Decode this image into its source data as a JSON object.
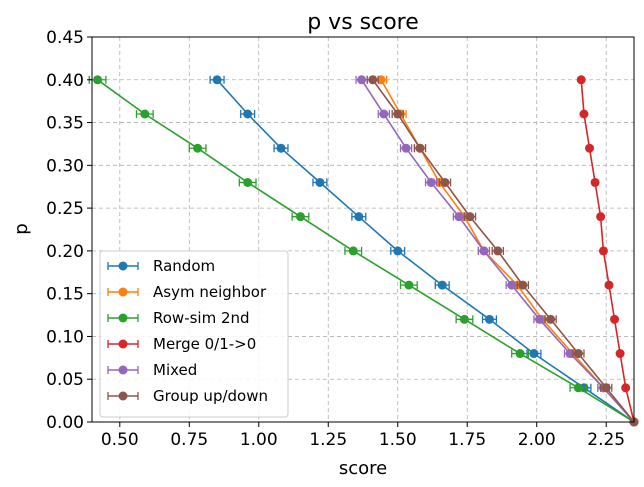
{
  "chart_data": {
    "type": "line",
    "title": "p vs score",
    "xlabel": "score",
    "ylabel": "p",
    "xlim": [
      0.4,
      2.35
    ],
    "ylim": [
      0.0,
      0.45
    ],
    "xticks": [
      "0.50",
      "0.75",
      "1.00",
      "1.25",
      "1.50",
      "1.75",
      "2.00",
      "2.25"
    ],
    "yticks": [
      "0.00",
      "0.05",
      "0.10",
      "0.15",
      "0.20",
      "0.25",
      "0.30",
      "0.35",
      "0.40",
      "0.45"
    ],
    "grid": true,
    "legend_position": "lower-left",
    "error_bars": "horizontal",
    "series": [
      {
        "name": "Random",
        "color": "#1f77b4",
        "points": [
          {
            "x": 0.85,
            "y": 0.4
          },
          {
            "x": 0.96,
            "y": 0.36
          },
          {
            "x": 1.08,
            "y": 0.32
          },
          {
            "x": 1.22,
            "y": 0.28
          },
          {
            "x": 1.36,
            "y": 0.24
          },
          {
            "x": 1.5,
            "y": 0.2
          },
          {
            "x": 1.66,
            "y": 0.16
          },
          {
            "x": 1.83,
            "y": 0.12
          },
          {
            "x": 1.99,
            "y": 0.08
          },
          {
            "x": 2.17,
            "y": 0.04
          },
          {
            "x": 2.35,
            "y": 0.0
          }
        ],
        "err": 0.025
      },
      {
        "name": "Asym neighbor",
        "color": "#ff7f0e",
        "points": [
          {
            "x": 1.44,
            "y": 0.4
          },
          {
            "x": 1.51,
            "y": 0.36
          },
          {
            "x": 1.58,
            "y": 0.32
          },
          {
            "x": 1.65,
            "y": 0.28
          },
          {
            "x": 1.74,
            "y": 0.24
          },
          {
            "x": 1.81,
            "y": 0.2
          },
          {
            "x": 1.93,
            "y": 0.16
          },
          {
            "x": 2.02,
            "y": 0.12
          },
          {
            "x": 2.13,
            "y": 0.08
          },
          {
            "x": 2.24,
            "y": 0.04
          },
          {
            "x": 2.35,
            "y": 0.0
          }
        ],
        "err": 0.02
      },
      {
        "name": "Row-sim 2nd",
        "color": "#2ca02c",
        "points": [
          {
            "x": 0.42,
            "y": 0.4
          },
          {
            "x": 0.59,
            "y": 0.36
          },
          {
            "x": 0.78,
            "y": 0.32
          },
          {
            "x": 0.96,
            "y": 0.28
          },
          {
            "x": 1.15,
            "y": 0.24
          },
          {
            "x": 1.34,
            "y": 0.2
          },
          {
            "x": 1.54,
            "y": 0.16
          },
          {
            "x": 1.74,
            "y": 0.12
          },
          {
            "x": 1.94,
            "y": 0.08
          },
          {
            "x": 2.15,
            "y": 0.04
          },
          {
            "x": 2.35,
            "y": 0.0
          }
        ],
        "err": 0.03
      },
      {
        "name": "Merge 0/1->0",
        "color": "#d62728",
        "points": [
          {
            "x": 2.16,
            "y": 0.4
          },
          {
            "x": 2.17,
            "y": 0.36
          },
          {
            "x": 2.19,
            "y": 0.32
          },
          {
            "x": 2.21,
            "y": 0.28
          },
          {
            "x": 2.23,
            "y": 0.24
          },
          {
            "x": 2.24,
            "y": 0.2
          },
          {
            "x": 2.26,
            "y": 0.16
          },
          {
            "x": 2.28,
            "y": 0.12
          },
          {
            "x": 2.3,
            "y": 0.08
          },
          {
            "x": 2.32,
            "y": 0.04
          },
          {
            "x": 2.35,
            "y": 0.0
          }
        ],
        "err": 0.0
      },
      {
        "name": "Mixed",
        "color": "#9467bd",
        "points": [
          {
            "x": 1.37,
            "y": 0.4
          },
          {
            "x": 1.45,
            "y": 0.36
          },
          {
            "x": 1.53,
            "y": 0.32
          },
          {
            "x": 1.62,
            "y": 0.28
          },
          {
            "x": 1.72,
            "y": 0.24
          },
          {
            "x": 1.81,
            "y": 0.2
          },
          {
            "x": 1.91,
            "y": 0.16
          },
          {
            "x": 2.01,
            "y": 0.12
          },
          {
            "x": 2.12,
            "y": 0.08
          },
          {
            "x": 2.24,
            "y": 0.04
          },
          {
            "x": 2.35,
            "y": 0.0
          }
        ],
        "err": 0.02
      },
      {
        "name": "Group up/down",
        "color": "#8c564b",
        "points": [
          {
            "x": 1.41,
            "y": 0.4
          },
          {
            "x": 1.5,
            "y": 0.36
          },
          {
            "x": 1.58,
            "y": 0.32
          },
          {
            "x": 1.67,
            "y": 0.28
          },
          {
            "x": 1.76,
            "y": 0.24
          },
          {
            "x": 1.86,
            "y": 0.2
          },
          {
            "x": 1.95,
            "y": 0.16
          },
          {
            "x": 2.05,
            "y": 0.12
          },
          {
            "x": 2.15,
            "y": 0.08
          },
          {
            "x": 2.25,
            "y": 0.04
          },
          {
            "x": 2.35,
            "y": 0.0
          }
        ],
        "err": 0.02
      }
    ]
  }
}
